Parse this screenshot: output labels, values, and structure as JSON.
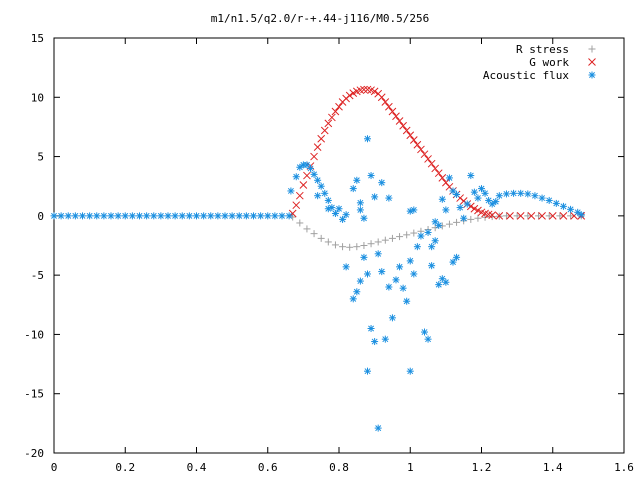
{
  "chart_data": {
    "type": "scatter",
    "title": "m1/n1.5/q2.0/r-+.44-j116/M0.5/256",
    "xlabel": "",
    "ylabel": "",
    "xlim": [
      0,
      1.6
    ],
    "ylim": [
      -20,
      15
    ],
    "xticks": [
      "0",
      "0.2",
      "0.4",
      "0.6",
      "0.8",
      "1",
      "1.2",
      "1.4",
      "1.6"
    ],
    "yticks": [
      "15",
      "10",
      "5",
      "0",
      "-5",
      "-10",
      "-15",
      "-20"
    ],
    "legend_position": "top-right",
    "grid": false,
    "series": [
      {
        "name": "R stress",
        "marker": "plus",
        "color": "#a0a0a0",
        "points": [
          [
            0.67,
            -0.1
          ],
          [
            0.69,
            -0.6
          ],
          [
            0.71,
            -1.1
          ],
          [
            0.73,
            -1.5
          ],
          [
            0.75,
            -1.9
          ],
          [
            0.77,
            -2.2
          ],
          [
            0.79,
            -2.45
          ],
          [
            0.81,
            -2.6
          ],
          [
            0.83,
            -2.65
          ],
          [
            0.85,
            -2.6
          ],
          [
            0.87,
            -2.5
          ],
          [
            0.89,
            -2.35
          ],
          [
            0.91,
            -2.2
          ],
          [
            0.93,
            -2.05
          ],
          [
            0.95,
            -1.9
          ],
          [
            0.97,
            -1.75
          ],
          [
            0.99,
            -1.6
          ],
          [
            1.01,
            -1.45
          ],
          [
            1.03,
            -1.3
          ],
          [
            1.05,
            -1.15
          ],
          [
            1.07,
            -1.0
          ],
          [
            1.09,
            -0.85
          ],
          [
            1.11,
            -0.7
          ],
          [
            1.13,
            -0.55
          ],
          [
            1.15,
            -0.42
          ],
          [
            1.17,
            -0.3
          ],
          [
            1.19,
            -0.2
          ],
          [
            1.21,
            -0.12
          ],
          [
            1.23,
            -0.06
          ],
          [
            1.25,
            -0.03
          ],
          [
            1.27,
            0.0
          ],
          [
            1.3,
            0.0
          ],
          [
            1.33,
            0.0
          ],
          [
            1.36,
            0.0
          ],
          [
            1.39,
            0.0
          ],
          [
            1.42,
            0.0
          ],
          [
            1.45,
            0.0
          ],
          [
            1.48,
            0.0
          ]
        ]
      },
      {
        "name": "G work",
        "marker": "cross",
        "color": "#dd2222",
        "points": [
          [
            0.67,
            0.2
          ],
          [
            0.68,
            0.9
          ],
          [
            0.69,
            1.7
          ],
          [
            0.7,
            2.6
          ],
          [
            0.71,
            3.4
          ],
          [
            0.72,
            4.2
          ],
          [
            0.73,
            5.0
          ],
          [
            0.74,
            5.8
          ],
          [
            0.75,
            6.5
          ],
          [
            0.76,
            7.2
          ],
          [
            0.77,
            7.8
          ],
          [
            0.78,
            8.3
          ],
          [
            0.79,
            8.8
          ],
          [
            0.8,
            9.2
          ],
          [
            0.81,
            9.6
          ],
          [
            0.82,
            9.9
          ],
          [
            0.83,
            10.15
          ],
          [
            0.84,
            10.35
          ],
          [
            0.85,
            10.5
          ],
          [
            0.86,
            10.6
          ],
          [
            0.87,
            10.65
          ],
          [
            0.88,
            10.65
          ],
          [
            0.89,
            10.6
          ],
          [
            0.9,
            10.5
          ],
          [
            0.91,
            10.3
          ],
          [
            0.92,
            10.0
          ],
          [
            0.93,
            9.6
          ],
          [
            0.94,
            9.2
          ],
          [
            0.95,
            8.8
          ],
          [
            0.96,
            8.4
          ],
          [
            0.97,
            8.0
          ],
          [
            0.98,
            7.6
          ],
          [
            0.99,
            7.2
          ],
          [
            1.0,
            6.8
          ],
          [
            1.01,
            6.4
          ],
          [
            1.02,
            6.0
          ],
          [
            1.03,
            5.6
          ],
          [
            1.04,
            5.2
          ],
          [
            1.05,
            4.8
          ],
          [
            1.06,
            4.4
          ],
          [
            1.07,
            4.0
          ],
          [
            1.08,
            3.6
          ],
          [
            1.09,
            3.2
          ],
          [
            1.1,
            2.8
          ],
          [
            1.11,
            2.45
          ],
          [
            1.12,
            2.1
          ],
          [
            1.13,
            1.8
          ],
          [
            1.14,
            1.5
          ],
          [
            1.15,
            1.25
          ],
          [
            1.16,
            1.0
          ],
          [
            1.17,
            0.8
          ],
          [
            1.18,
            0.6
          ],
          [
            1.19,
            0.45
          ],
          [
            1.2,
            0.3
          ],
          [
            1.21,
            0.2
          ],
          [
            1.22,
            0.12
          ],
          [
            1.23,
            0.06
          ],
          [
            1.25,
            0.0
          ],
          [
            1.28,
            0.0
          ],
          [
            1.31,
            0.0
          ],
          [
            1.34,
            0.0
          ],
          [
            1.37,
            0.0
          ],
          [
            1.4,
            0.0
          ],
          [
            1.43,
            0.0
          ],
          [
            1.46,
            0.0
          ],
          [
            1.48,
            0.0
          ]
        ]
      },
      {
        "name": "Acoustic flux",
        "marker": "star",
        "color": "#1a8fe0",
        "points": [
          [
            0.0,
            0.0
          ],
          [
            0.02,
            0.0
          ],
          [
            0.04,
            0.0
          ],
          [
            0.06,
            0.0
          ],
          [
            0.08,
            0.0
          ],
          [
            0.1,
            0.0
          ],
          [
            0.12,
            0.0
          ],
          [
            0.14,
            0.0
          ],
          [
            0.16,
            0.0
          ],
          [
            0.18,
            0.0
          ],
          [
            0.2,
            0.0
          ],
          [
            0.22,
            0.0
          ],
          [
            0.24,
            0.0
          ],
          [
            0.26,
            0.0
          ],
          [
            0.28,
            0.0
          ],
          [
            0.3,
            0.0
          ],
          [
            0.32,
            0.0
          ],
          [
            0.34,
            0.0
          ],
          [
            0.36,
            0.0
          ],
          [
            0.38,
            0.0
          ],
          [
            0.4,
            0.0
          ],
          [
            0.42,
            0.0
          ],
          [
            0.44,
            0.0
          ],
          [
            0.46,
            0.0
          ],
          [
            0.48,
            0.0
          ],
          [
            0.5,
            0.0
          ],
          [
            0.52,
            0.0
          ],
          [
            0.54,
            0.0
          ],
          [
            0.56,
            0.0
          ],
          [
            0.58,
            0.0
          ],
          [
            0.6,
            0.0
          ],
          [
            0.62,
            0.0
          ],
          [
            0.64,
            0.0
          ],
          [
            0.66,
            0.0
          ],
          [
            0.665,
            2.1
          ],
          [
            0.68,
            3.3
          ],
          [
            0.69,
            4.1
          ],
          [
            0.7,
            4.3
          ],
          [
            0.71,
            4.3
          ],
          [
            0.72,
            4.0
          ],
          [
            0.73,
            3.5
          ],
          [
            0.74,
            3.0
          ],
          [
            0.75,
            2.5
          ],
          [
            0.76,
            1.9
          ],
          [
            0.77,
            1.3
          ],
          [
            0.78,
            0.7
          ],
          [
            0.79,
            0.2
          ],
          [
            0.8,
            0.6
          ],
          [
            0.81,
            -0.3
          ],
          [
            0.82,
            0.1
          ],
          [
            0.74,
            1.7
          ],
          [
            0.77,
            0.6
          ],
          [
            0.84,
            2.3
          ],
          [
            0.85,
            3.0
          ],
          [
            0.86,
            1.1
          ],
          [
            0.86,
            0.5
          ],
          [
            0.87,
            -0.2
          ],
          [
            0.88,
            6.5
          ],
          [
            0.89,
            3.4
          ],
          [
            0.9,
            1.6
          ],
          [
            0.92,
            2.8
          ],
          [
            0.94,
            1.5
          ],
          [
            1.0,
            0.4
          ],
          [
            1.01,
            0.5
          ],
          [
            1.03,
            -1.7
          ],
          [
            1.05,
            -1.4
          ],
          [
            1.06,
            -2.6
          ],
          [
            1.07,
            -0.5
          ],
          [
            1.08,
            -0.8
          ],
          [
            1.09,
            1.4
          ],
          [
            1.1,
            0.5
          ],
          [
            1.11,
            3.2
          ],
          [
            1.12,
            2.1
          ],
          [
            1.13,
            1.8
          ],
          [
            1.14,
            0.7
          ],
          [
            1.15,
            -0.2
          ],
          [
            1.16,
            1.0
          ],
          [
            1.17,
            3.4
          ],
          [
            1.18,
            2.0
          ],
          [
            1.19,
            1.5
          ],
          [
            1.2,
            2.3
          ],
          [
            1.21,
            1.9
          ],
          [
            1.22,
            1.3
          ],
          [
            1.23,
            1.0
          ],
          [
            1.24,
            1.2
          ],
          [
            1.25,
            1.7
          ],
          [
            1.27,
            1.85
          ],
          [
            1.29,
            1.9
          ],
          [
            1.31,
            1.9
          ],
          [
            1.33,
            1.85
          ],
          [
            1.35,
            1.7
          ],
          [
            1.37,
            1.5
          ],
          [
            1.39,
            1.3
          ],
          [
            1.41,
            1.05
          ],
          [
            1.43,
            0.8
          ],
          [
            1.45,
            0.55
          ],
          [
            1.47,
            0.3
          ],
          [
            1.48,
            0.1
          ],
          [
            0.82,
            -4.3
          ],
          [
            0.84,
            -7.0
          ],
          [
            0.85,
            -6.4
          ],
          [
            0.86,
            -5.5
          ],
          [
            0.87,
            -3.5
          ],
          [
            0.88,
            -4.9
          ],
          [
            0.89,
            -9.5
          ],
          [
            0.9,
            -10.6
          ],
          [
            0.91,
            -3.2
          ],
          [
            0.92,
            -4.7
          ],
          [
            0.93,
            -10.4
          ],
          [
            0.94,
            -6.0
          ],
          [
            0.95,
            -8.6
          ],
          [
            0.96,
            -5.4
          ],
          [
            0.97,
            -4.3
          ],
          [
            0.98,
            -6.1
          ],
          [
            0.99,
            -7.2
          ],
          [
            1.0,
            -3.8
          ],
          [
            1.01,
            -4.9
          ],
          [
            1.02,
            -2.6
          ],
          [
            1.04,
            -9.8
          ],
          [
            1.05,
            -10.4
          ],
          [
            1.06,
            -4.2
          ],
          [
            1.07,
            -2.1
          ],
          [
            1.08,
            -5.8
          ],
          [
            1.09,
            -5.3
          ],
          [
            1.1,
            -5.6
          ],
          [
            1.12,
            -3.9
          ],
          [
            1.13,
            -3.5
          ],
          [
            0.88,
            -13.1
          ],
          [
            0.91,
            -17.9
          ],
          [
            1.0,
            -13.1
          ]
        ]
      }
    ]
  }
}
